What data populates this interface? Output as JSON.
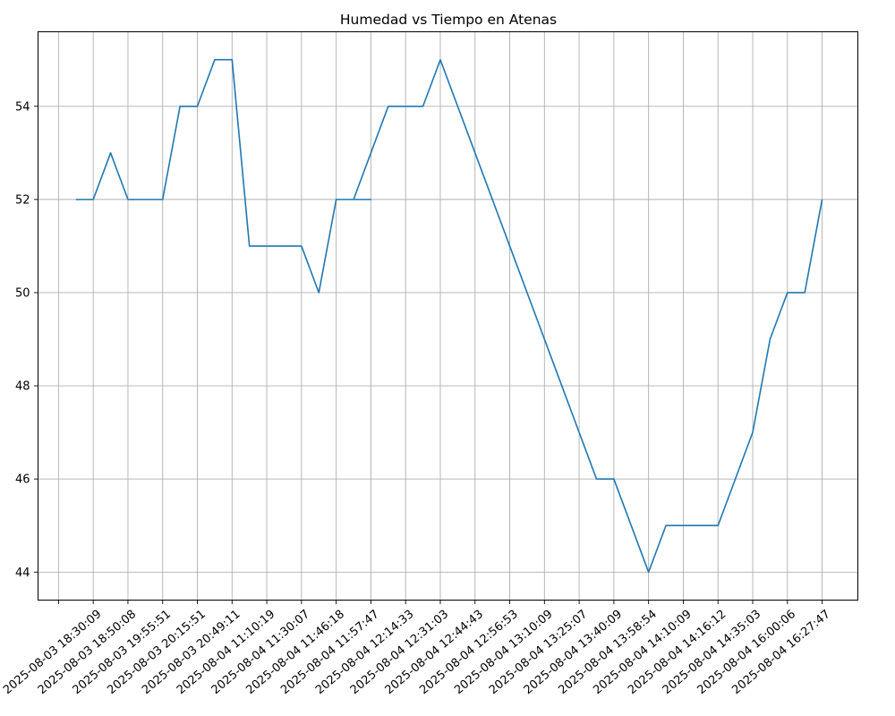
{
  "chart_data": {
    "type": "line",
    "title": "Humedad vs Tiempo en Atenas",
    "xlabel": "",
    "ylabel": "",
    "ylim": [
      43.4,
      55.6
    ],
    "y_ticks": [
      44,
      46,
      48,
      50,
      52,
      54
    ],
    "grid": true,
    "x_tick_labels": [
      "",
      "2025-08-03 18:30:09",
      "2025-08-03 18:50:08",
      "2025-08-03 19:55:51",
      "2025-08-03 20:15:51",
      "2025-08-03 20:49:11",
      "2025-08-04 11:10:19",
      "2025-08-04 11:30:07",
      "2025-08-04 11:46:18",
      "2025-08-04 11:57:47",
      "2025-08-04 12:14:33",
      "2025-08-04 12:31:03",
      "2025-08-04 12:44:43",
      "2025-08-04 12:56:53",
      "2025-08-04 13:10:09",
      "2025-08-04 13:25:07",
      "2025-08-04 13:40:09",
      "2025-08-04 13:58:54",
      "2025-08-04 14:10:09",
      "2025-08-04 14:16:12",
      "2025-08-04 14:35:03",
      "2025-08-04 16:00:06",
      "2025-08-04 16:27:47"
    ],
    "series": [
      {
        "color": "#1f77b4",
        "points": [
          {
            "x": 0.5,
            "y": 52
          },
          {
            "x": 1.0,
            "y": 52
          },
          {
            "x": 1.5,
            "y": 53
          },
          {
            "x": 2.0,
            "y": 52
          },
          {
            "x": 2.5,
            "y": 52
          },
          {
            "x": 3.0,
            "y": 52
          },
          {
            "x": 3.5,
            "y": 54
          },
          {
            "x": 4.0,
            "y": 54
          },
          {
            "x": 4.5,
            "y": 55
          },
          {
            "x": 5.0,
            "y": 55
          },
          {
            "x": 5.5,
            "y": 51
          },
          {
            "x": 6.0,
            "y": 51
          },
          {
            "x": 6.5,
            "y": 51
          },
          {
            "x": 7.0,
            "y": 51
          },
          {
            "x": 7.5,
            "y": 50
          },
          {
            "x": 8.0,
            "y": 52
          },
          {
            "x": 8.5,
            "y": 52
          },
          {
            "x": 9.0,
            "y": 52
          },
          {
            "x": 8.5,
            "y": 52
          },
          {
            "x": 9.0,
            "y": 53
          },
          {
            "x": 9.5,
            "y": 54
          },
          {
            "x": 10.0,
            "y": 54
          },
          {
            "x": 10.5,
            "y": 54
          },
          {
            "x": 11.0,
            "y": 55
          },
          {
            "x": 12.0,
            "y": 53
          },
          {
            "x": 13.0,
            "y": 51
          },
          {
            "x": 14.0,
            "y": 49
          },
          {
            "x": 15.0,
            "y": 47
          },
          {
            "x": 15.5,
            "y": 46
          },
          {
            "x": 16.0,
            "y": 46
          },
          {
            "x": 17.0,
            "y": 44
          },
          {
            "x": 17.5,
            "y": 45
          },
          {
            "x": 18.0,
            "y": 45
          },
          {
            "x": 18.5,
            "y": 45
          },
          {
            "x": 19.0,
            "y": 45
          },
          {
            "x": 20.0,
            "y": 47
          },
          {
            "x": 20.5,
            "y": 49
          },
          {
            "x": 21.0,
            "y": 50
          },
          {
            "x": 21.5,
            "y": 50
          },
          {
            "x": 22.0,
            "y": 52
          }
        ]
      }
    ]
  }
}
